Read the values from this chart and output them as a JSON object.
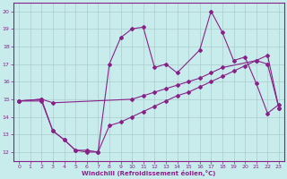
{
  "xlabel": "Windchill (Refroidissement éolien,°C)",
  "bg_color": "#c8ecec",
  "line_color": "#882288",
  "xlim": [
    -0.5,
    23.5
  ],
  "ylim": [
    11.5,
    20.5
  ],
  "xticks": [
    0,
    1,
    2,
    3,
    4,
    5,
    6,
    7,
    8,
    9,
    10,
    11,
    12,
    13,
    14,
    15,
    16,
    17,
    18,
    19,
    20,
    21,
    22,
    23
  ],
  "yticks": [
    12,
    13,
    14,
    15,
    16,
    17,
    18,
    19,
    20
  ],
  "grid_color": "#aacccc",
  "line1_x": [
    0,
    2,
    3,
    4,
    5,
    6,
    7,
    8,
    9,
    10,
    11,
    12,
    13,
    14,
    16,
    17,
    18,
    19,
    20,
    21,
    22,
    23
  ],
  "line1_y": [
    14.9,
    15.0,
    13.2,
    12.7,
    12.1,
    12.1,
    12.0,
    17.0,
    18.5,
    19.0,
    19.1,
    16.8,
    17.0,
    16.5,
    17.8,
    20.0,
    18.8,
    17.2,
    17.4,
    15.9,
    14.2,
    14.7
  ],
  "line2_x": [
    0,
    2,
    3,
    10,
    11,
    12,
    13,
    14,
    15,
    16,
    17,
    18,
    21,
    22,
    23
  ],
  "line2_y": [
    14.9,
    15.0,
    14.8,
    15.0,
    15.2,
    15.4,
    15.6,
    15.8,
    16.0,
    16.2,
    16.5,
    16.8,
    17.2,
    17.0,
    14.5
  ],
  "line3_x": [
    0,
    2,
    3,
    4,
    5,
    6,
    7,
    8,
    9,
    10,
    11,
    12,
    13,
    14,
    15,
    16,
    17,
    18,
    19,
    20,
    21,
    22,
    23
  ],
  "line3_y": [
    14.9,
    14.9,
    13.2,
    12.7,
    12.1,
    12.0,
    12.0,
    13.5,
    13.7,
    14.0,
    14.3,
    14.6,
    14.9,
    15.2,
    15.4,
    15.7,
    16.0,
    16.3,
    16.6,
    16.9,
    17.2,
    17.5,
    14.5
  ]
}
